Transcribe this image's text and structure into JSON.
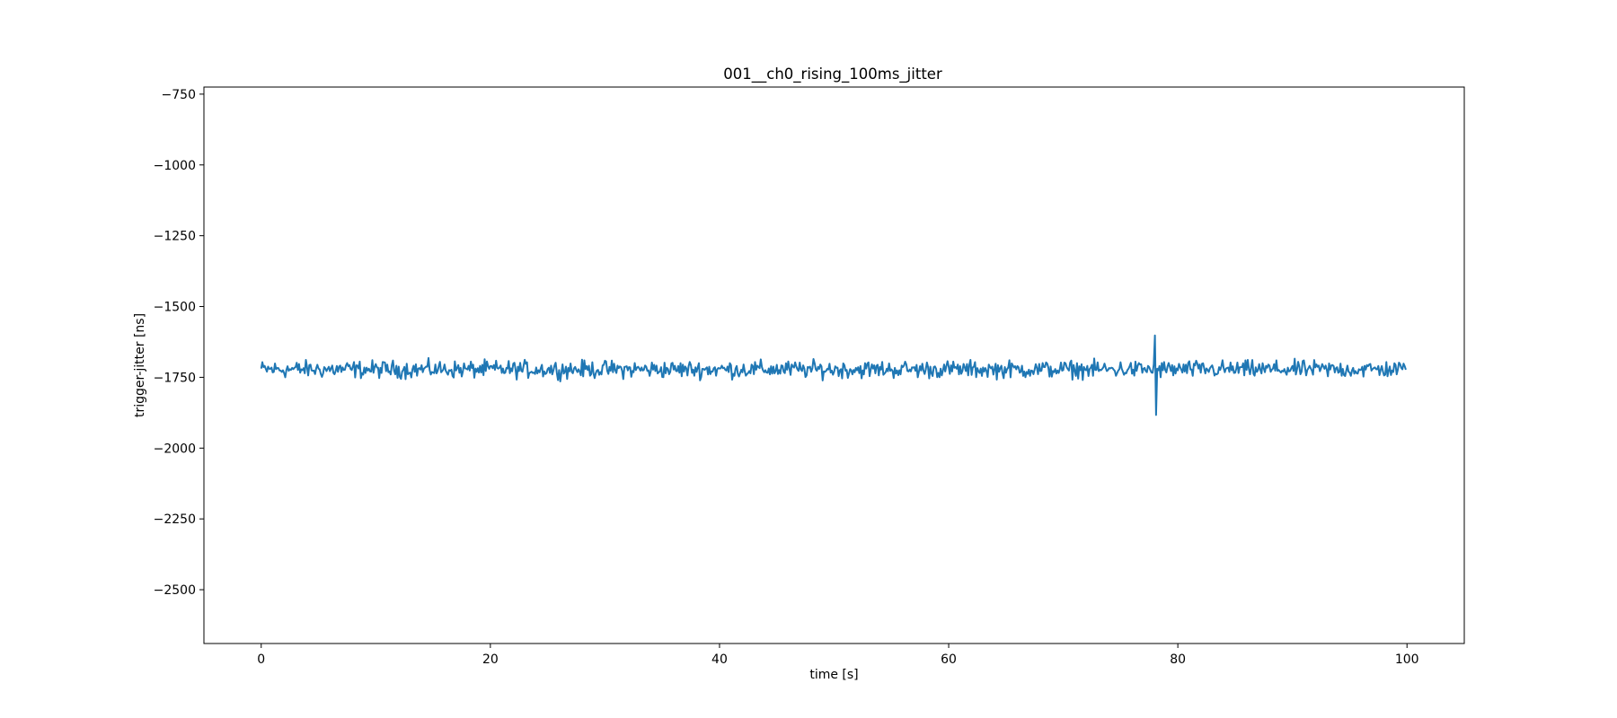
{
  "chart_data": {
    "type": "line",
    "title": "001__ch0_rising_100ms_jitter",
    "xlabel": "time [s]",
    "ylabel": "trigger-jitter [ns]",
    "xlim": [
      -5,
      105
    ],
    "ylim": [
      -2690,
      -725
    ],
    "x_ticks": [
      0,
      20,
      40,
      60,
      80,
      100
    ],
    "x_tick_labels": [
      "0",
      "20",
      "40",
      "60",
      "80",
      "100"
    ],
    "y_ticks": [
      -750,
      -1000,
      -1250,
      -1500,
      -1750,
      -2000,
      -2250,
      -2500
    ],
    "y_tick_labels": [
      "−750",
      "−1000",
      "−1250",
      "−1500",
      "−1750",
      "−2000",
      "−2250",
      "−2500"
    ],
    "grid": false,
    "series": [
      {
        "color": "#1f77b4",
        "x_start": 0,
        "x_step": 0.1,
        "points": 1000,
        "baseline": -1722,
        "jitter_range": [
          -1770,
          -1680
        ],
        "spike": {
          "x": 78.0,
          "max": -1602,
          "min": -1883
        }
      }
    ]
  }
}
